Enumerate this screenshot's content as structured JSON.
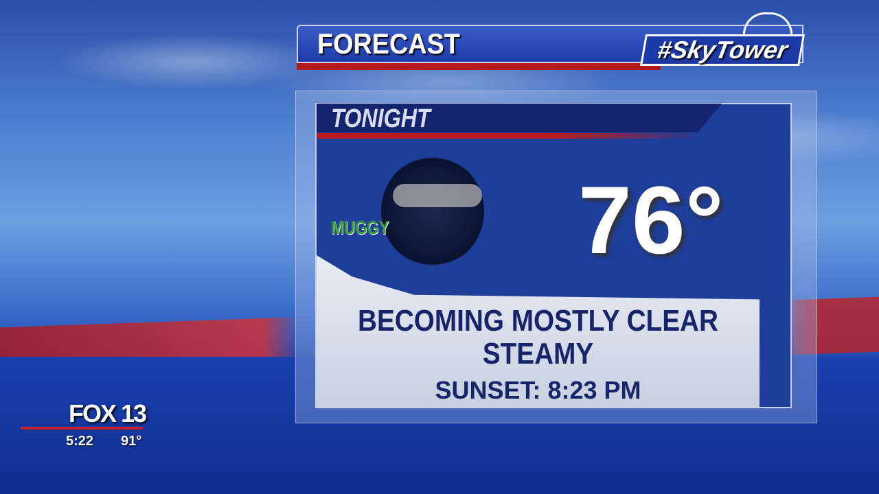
{
  "header": {
    "title": "FORECAST",
    "brand": "#SkyTower"
  },
  "card": {
    "period": "TONIGHT",
    "icon": "night-clear-cloud-icon",
    "icon_label": "MUGGY",
    "temperature": "76°",
    "conditions": [
      "BECOMING MOSTLY CLEAR",
      "STEAMY"
    ],
    "sunset": "SUNSET: 8:23 PM"
  },
  "bug": {
    "station": "FOX 13",
    "time": "5:22",
    "temperature": "91°"
  },
  "colors": {
    "accent_red": "#b01c1c",
    "navy": "#14246e",
    "blue": "#1f3e9a"
  }
}
